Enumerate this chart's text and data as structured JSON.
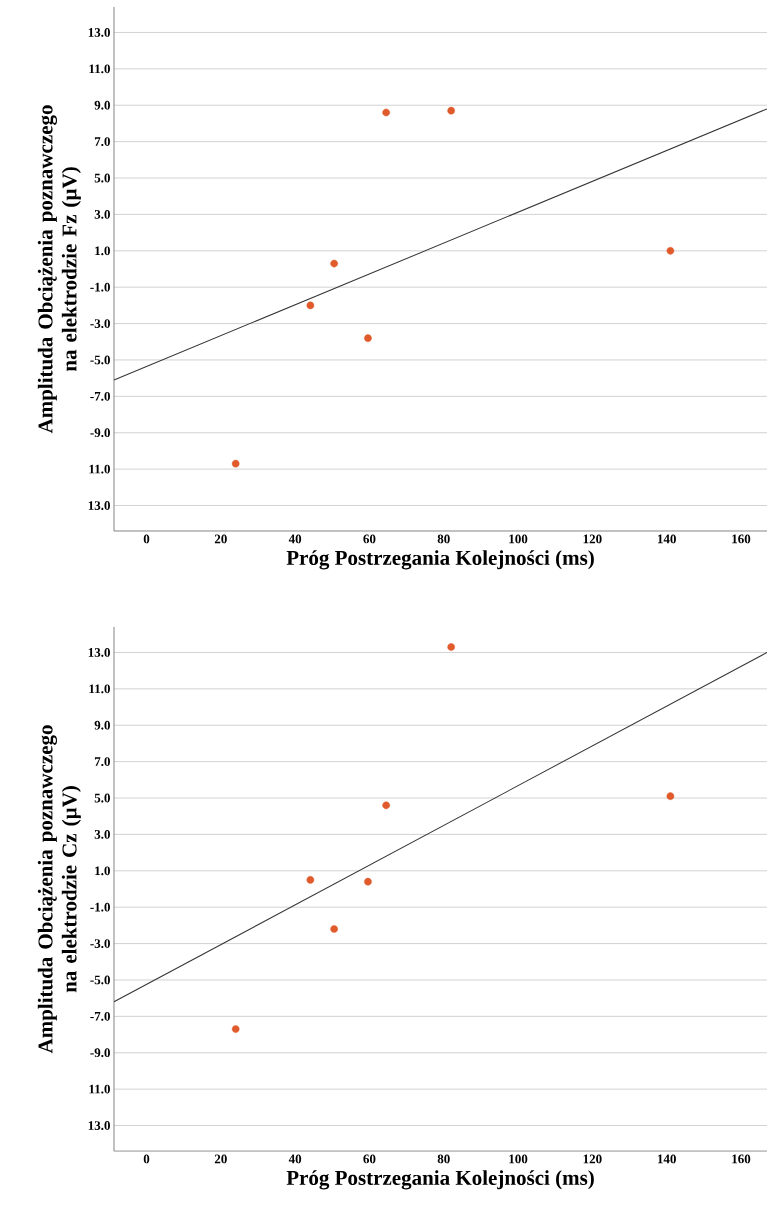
{
  "chart_data": [
    {
      "type": "scatter",
      "xlabel": "Próg Postrzegania Kolejności (ms)",
      "ylabel": "Amplituda Obciążenia poznawczego na elektrodzie Fz (µV)",
      "xlim": [
        -8.75,
        167
      ],
      "ylim": [
        -14.4,
        14.4
      ],
      "xticks": [
        0,
        20,
        40,
        60,
        80,
        100,
        120,
        140,
        160
      ],
      "yticks": [
        {
          "value": 13,
          "label": "13.0"
        },
        {
          "value": 11,
          "label": "11.0"
        },
        {
          "value": 9,
          "label": "9.0"
        },
        {
          "value": 7,
          "label": "7.0"
        },
        {
          "value": 5,
          "label": "5.0"
        },
        {
          "value": 3,
          "label": "3.0"
        },
        {
          "value": 1,
          "label": "1.0"
        },
        {
          "value": -1,
          "label": "-1.0"
        },
        {
          "value": -3,
          "label": "-3.0"
        },
        {
          "value": -5,
          "label": "-5.0"
        },
        {
          "value": -7,
          "label": "-7.0"
        },
        {
          "value": -9,
          "label": "-9.0"
        },
        {
          "value": -11,
          "label": "11.0"
        },
        {
          "value": -13,
          "label": "13.0"
        }
      ],
      "grid": "y",
      "marker": "circle",
      "series": [
        {
          "type": "scatter",
          "color": "#e05a2b",
          "x": [
            24.0,
            44.1,
            50.5,
            59.6,
            64.5,
            82.0,
            141.0
          ],
          "values": [
            -10.7,
            -2.0,
            0.3,
            -3.8,
            8.6,
            8.7,
            1.0
          ]
        },
        {
          "type": "line",
          "color": "#333333",
          "marker": "none",
          "x": [
            -8.75,
            167
          ],
          "values": [
            -6.1,
            8.8
          ]
        }
      ]
    },
    {
      "type": "scatter",
      "xlabel": "Próg Postrzegania Kolejności (ms)",
      "ylabel": "Amplituda Obciążenia poznawczego na elektrodzie Cz (µV)",
      "xlim": [
        -8.75,
        167
      ],
      "ylim": [
        -14.4,
        14.4
      ],
      "xticks": [
        0,
        20,
        40,
        60,
        80,
        100,
        120,
        140,
        160
      ],
      "yticks": [
        {
          "value": 13,
          "label": "13.0"
        },
        {
          "value": 11,
          "label": "11.0"
        },
        {
          "value": 9,
          "label": "9.0"
        },
        {
          "value": 7,
          "label": "7.0"
        },
        {
          "value": 5,
          "label": "5.0"
        },
        {
          "value": 3,
          "label": "3.0"
        },
        {
          "value": 1,
          "label": "1.0"
        },
        {
          "value": -1,
          "label": "-1.0"
        },
        {
          "value": -3,
          "label": "-3.0"
        },
        {
          "value": -5,
          "label": "-5.0"
        },
        {
          "value": -7,
          "label": "-7.0"
        },
        {
          "value": -9,
          "label": "-9.0"
        },
        {
          "value": -11,
          "label": "11.0"
        },
        {
          "value": -13,
          "label": "13.0"
        }
      ],
      "grid": "y",
      "marker": "circle",
      "series": [
        {
          "type": "scatter",
          "color": "#e05a2b",
          "x": [
            24.0,
            44.1,
            50.5,
            59.6,
            64.5,
            82.0,
            141.0
          ],
          "values": [
            -7.7,
            0.5,
            -2.2,
            0.4,
            4.6,
            13.3,
            5.1
          ]
        },
        {
          "type": "line",
          "color": "#333333",
          "marker": "none",
          "x": [
            -8.75,
            167
          ],
          "values": [
            -6.2,
            13.0
          ]
        }
      ]
    }
  ]
}
